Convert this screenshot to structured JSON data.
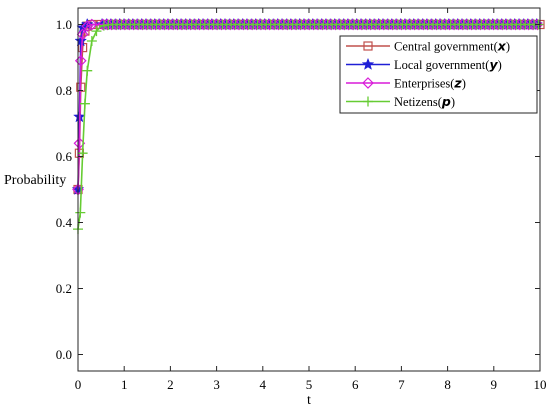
{
  "chart_data": {
    "type": "line",
    "xlabel": "t",
    "ylabel": "Probability",
    "xlim": [
      0,
      10
    ],
    "ylim": [
      -0.05,
      1.05
    ],
    "x_ticks": [
      "0",
      "1",
      "2",
      "3",
      "4",
      "5",
      "6",
      "7",
      "8",
      "9",
      "10"
    ],
    "y_ticks": [
      "0.0",
      "0.2",
      "0.4",
      "0.6",
      "0.8",
      "1.0"
    ],
    "grid": false,
    "legend_position": "top-right",
    "series": [
      {
        "name": "Central government(x)",
        "legend_prefix": "Central government(",
        "legend_var": "x",
        "color": "#c0504d",
        "marker": "square",
        "points": [
          [
            0,
            0.5
          ],
          [
            0.03,
            0.61
          ],
          [
            0.06,
            0.81
          ],
          [
            0.1,
            0.93
          ],
          [
            0.15,
            0.98
          ],
          [
            0.2,
            0.995
          ],
          [
            0.3,
            1.0
          ],
          [
            10,
            1.0
          ]
        ]
      },
      {
        "name": "Local government(y)",
        "legend_prefix": "Local government(",
        "legend_var": "y",
        "color": "#1f1fd6",
        "marker": "star",
        "points": [
          [
            0,
            0.5
          ],
          [
            0.03,
            0.72
          ],
          [
            0.06,
            0.95
          ],
          [
            0.1,
            0.99
          ],
          [
            0.2,
            1.0
          ],
          [
            10,
            1.0
          ]
        ]
      },
      {
        "name": "Enterprises(z)",
        "legend_prefix": "Enterprises(",
        "legend_var": "z",
        "color": "#d81bd8",
        "marker": "diamond",
        "points": [
          [
            0,
            0.5
          ],
          [
            0.03,
            0.64
          ],
          [
            0.06,
            0.89
          ],
          [
            0.1,
            0.97
          ],
          [
            0.2,
            0.995
          ],
          [
            0.3,
            1.0
          ],
          [
            10,
            1.0
          ]
        ]
      },
      {
        "name": "Netizens(p)",
        "legend_prefix": "Netizens(",
        "legend_var": "p",
        "color": "#66cc33",
        "marker": "plus",
        "points": [
          [
            0,
            0.38
          ],
          [
            0.05,
            0.43
          ],
          [
            0.1,
            0.61
          ],
          [
            0.15,
            0.76
          ],
          [
            0.2,
            0.86
          ],
          [
            0.3,
            0.95
          ],
          [
            0.4,
            0.98
          ],
          [
            0.5,
            0.995
          ],
          [
            0.7,
            1.0
          ],
          [
            10,
            1.0
          ]
        ]
      }
    ]
  }
}
